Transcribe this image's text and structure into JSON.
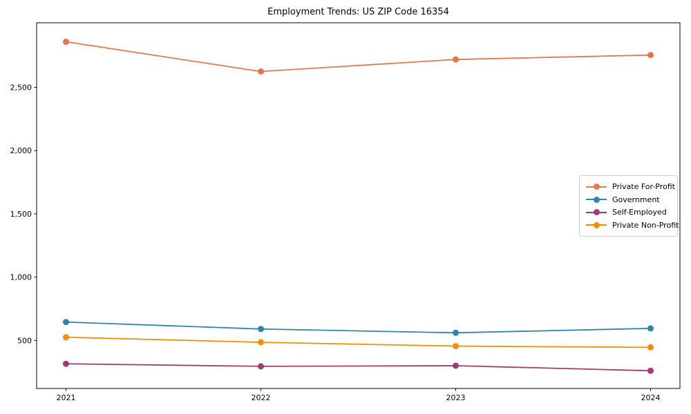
{
  "chart_data": {
    "type": "line",
    "title": "Employment Trends: US ZIP Code 16354",
    "xlabel": "",
    "ylabel": "",
    "x_labels": [
      "2021",
      "2022",
      "2023",
      "2024"
    ],
    "yticks": [
      500,
      1000,
      1500,
      2000,
      2500
    ],
    "ytick_labels": [
      "500",
      "1,000",
      "1,500",
      "2,000",
      "2,500"
    ],
    "ylim": [
      120,
      3010
    ],
    "grid": false,
    "legend_position": "center-right",
    "series": [
      {
        "name": "Private For-Profit",
        "color": "#E8764B",
        "values": [
          2860,
          2625,
          2720,
          2755
        ]
      },
      {
        "name": "Government",
        "color": "#2E86AB",
        "values": [
          645,
          590,
          560,
          595
        ]
      },
      {
        "name": "Self-Employed",
        "color": "#A23B72",
        "values": [
          315,
          295,
          300,
          260
        ]
      },
      {
        "name": "Private Non-Profit",
        "color": "#F18F01",
        "values": [
          525,
          485,
          455,
          445
        ]
      }
    ],
    "colors": {
      "axis": "#000000",
      "text": "#000000",
      "background": "#ffffff",
      "legend_border": "#cccccc"
    }
  }
}
